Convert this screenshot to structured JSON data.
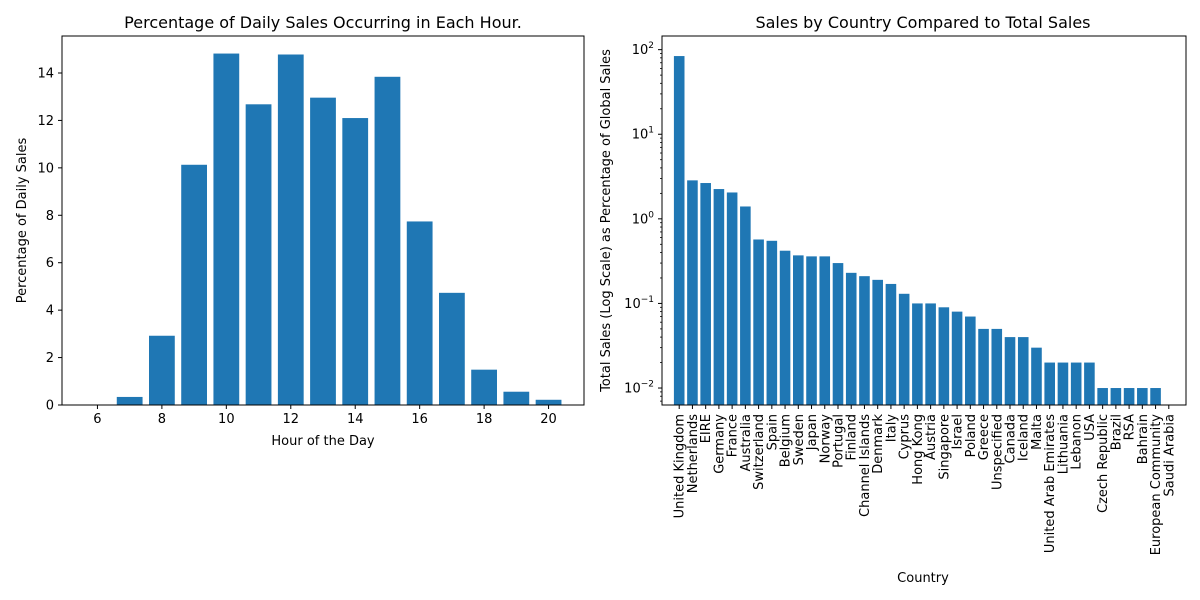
{
  "chart_data": [
    {
      "type": "bar",
      "title": "Percentage of Daily Sales Occurring in Each Hour.",
      "xlabel": "Hour of the Day",
      "ylabel": "Percentage of Daily Sales",
      "x": [
        6,
        7,
        8,
        9,
        10,
        11,
        12,
        13,
        14,
        15,
        16,
        17,
        18,
        19,
        20
      ],
      "values": [
        0.0,
        0.34,
        2.92,
        10.13,
        14.82,
        12.68,
        14.78,
        12.96,
        12.1,
        13.84,
        7.74,
        4.73,
        1.49,
        0.56,
        0.22
      ],
      "xlim": [
        4.9,
        21.1
      ],
      "ylim": [
        0,
        15.56
      ],
      "xticks": [
        6,
        8,
        10,
        12,
        14,
        16,
        18,
        20
      ],
      "yticks": [
        0,
        2,
        4,
        6,
        8,
        10,
        12,
        14
      ],
      "color": "#1f77b4",
      "grid": false
    },
    {
      "type": "bar",
      "title": "Sales by Country Compared to Total Sales",
      "xlabel": "Country",
      "ylabel": "Total Sales (Log Scale) as Percentage of Global Sales",
      "yscale": "log",
      "categories": [
        "United Kingdom",
        "Netherlands",
        "EIRE",
        "Germany",
        "France",
        "Australia",
        "Switzerland",
        "Spain",
        "Belgium",
        "Sweden",
        "Japan",
        "Norway",
        "Portugal",
        "Finland",
        "Channel Islands",
        "Denmark",
        "Italy",
        "Cyprus",
        "Hong Kong",
        "Austria",
        "Singapore",
        "Israel",
        "Poland",
        "Greece",
        "Unspecified",
        "Canada",
        "Iceland",
        "Malta",
        "United Arab Emirates",
        "Lithuania",
        "Lebanon",
        "USA",
        "Czech Republic",
        "Brazil",
        "RSA",
        "Bahrain",
        "European Community",
        "Saudi Arabia"
      ],
      "values": [
        84,
        2.85,
        2.65,
        2.25,
        2.05,
        1.4,
        0.57,
        0.55,
        0.42,
        0.37,
        0.36,
        0.36,
        0.3,
        0.23,
        0.21,
        0.19,
        0.17,
        0.13,
        0.1,
        0.1,
        0.09,
        0.08,
        0.07,
        0.05,
        0.05,
        0.04,
        0.04,
        0.03,
        0.02,
        0.02,
        0.02,
        0.02,
        0.01,
        0.01,
        0.01,
        0.01,
        0.01,
        0.0
      ],
      "ylim": [
        0.0063,
        145
      ],
      "yticks": [
        0.01,
        0.1,
        1,
        10,
        100
      ],
      "ytick_labels": [
        "10",
        "10",
        "10",
        "10",
        "10"
      ],
      "ytick_exponents": [
        "−2",
        "−1",
        "0",
        "1",
        "2"
      ],
      "color": "#1f77b4",
      "grid": false
    }
  ]
}
